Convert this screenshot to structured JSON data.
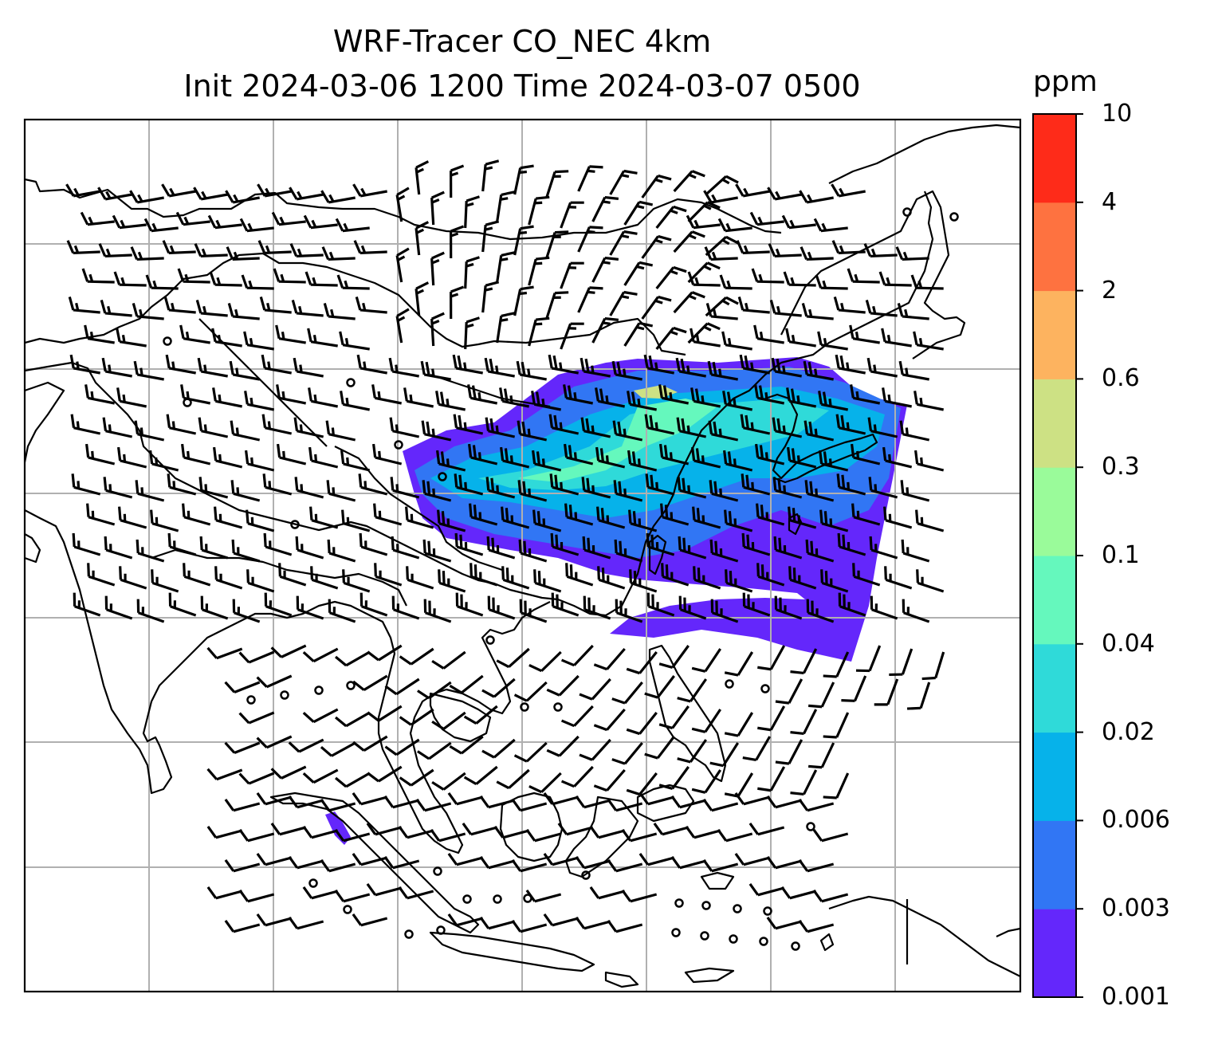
{
  "title": {
    "line1": "WRF-Tracer CO_NEC 4km",
    "line2": "Init 2024-03-06 1200 Time 2024-03-07 0500"
  },
  "colorbar": {
    "unit": "ppm",
    "ticks": [
      "0.001",
      "0.003",
      "0.006",
      "0.02",
      "0.04",
      "0.1",
      "0.3",
      "0.6",
      "2",
      "4",
      "10"
    ],
    "colors": [
      "#6427fb",
      "#3176f4",
      "#06b2ea",
      "#2fdad9",
      "#65f8bd",
      "#9afb9a",
      "#cde184",
      "#fdb35f",
      "#fe7240",
      "#fe2b19"
    ]
  },
  "map": {
    "graticule": true,
    "overlay": "wind barbs",
    "fill_colors": {
      "outer": "#6427fb",
      "low": "#3176f4",
      "mid": "#06b2ea",
      "higher": "#2fdad9",
      "peak": "#65f8bd",
      "max": "#cde184"
    },
    "coastline_color": "#000000",
    "grid_color": "#b0b0b0"
  }
}
